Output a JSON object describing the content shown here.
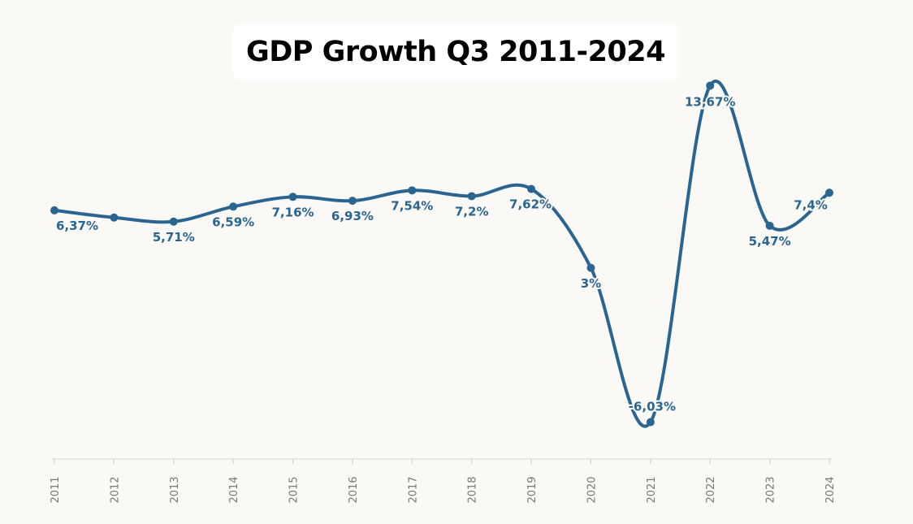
{
  "chart_data": {
    "type": "line",
    "title": "GDP Growth Q3 2011-2024",
    "xlabel": "",
    "ylabel": "",
    "categories": [
      "2011",
      "2012",
      "2013",
      "2014",
      "2015",
      "2016",
      "2017",
      "2018",
      "2019",
      "2020",
      "2021",
      "2022",
      "2023",
      "2024"
    ],
    "series": [
      {
        "values": [
          6.37,
          5.95,
          5.71,
          6.59,
          7.16,
          6.93,
          7.54,
          7.2,
          7.62,
          3,
          -6.03,
          13.67,
          5.47,
          7.4
        ],
        "labels": [
          "6,37%",
          "",
          "5,71%",
          "6,59%",
          "7,16%",
          "6,93%",
          "7,54%",
          "7,2%",
          "7,62%",
          "3%",
          "-6,03%",
          "13,67%",
          "5,47%",
          "7,4%"
        ]
      }
    ],
    "ylim": [
      -7,
      14.5
    ],
    "grid": false,
    "colors": {
      "line": "#2a6591",
      "label": "#2a6591",
      "background": "#fbf9f6"
    }
  }
}
